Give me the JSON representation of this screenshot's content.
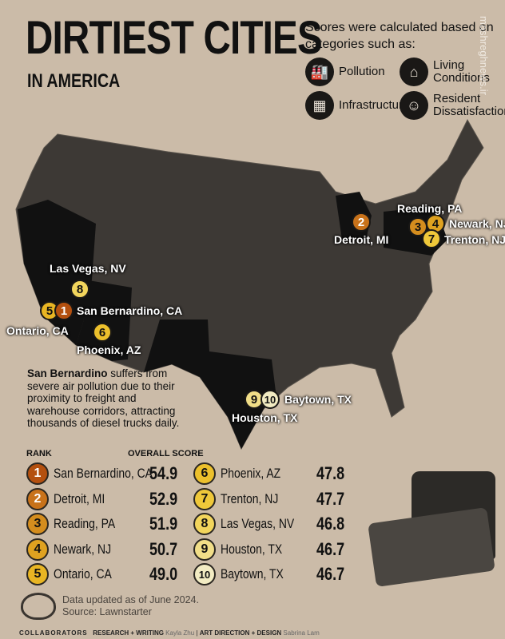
{
  "title": {
    "line1": "DIRTIEST CITIES",
    "line2": "IN AMERICA"
  },
  "note": {
    "text": "Scores were calculated based on categories such as:",
    "categories": [
      {
        "label": "Pollution",
        "icon": "factory-icon"
      },
      {
        "label": "Living Conditions",
        "icon": "house-icon"
      },
      {
        "label": "Infrastructure",
        "icon": "buildings-icon"
      },
      {
        "label": "Resident Dissatisfaction",
        "icon": "person-icon"
      }
    ]
  },
  "watermark": "mashreghnews.ir",
  "map_labels": {
    "las_vegas": "Las Vegas, NV",
    "san_bernardino": "San Bernardino, CA",
    "ontario": "Ontario, CA",
    "phoenix": "Phoenix, AZ",
    "detroit": "Detroit, MI",
    "reading": "Reading, PA",
    "newark": "Newark, NJ",
    "trenton": "Trenton, NJ",
    "houston": "Houston, TX",
    "baytown": "Baytown, TX"
  },
  "callout": {
    "bold": "San Bernardino",
    "text": " suffers from severe air pollution due to their proximity to freight and warehouse corridors, attracting thousands of diesel trucks daily."
  },
  "table": {
    "rank_header": "RANK",
    "score_header": "OVERALL SCORE",
    "rows": [
      {
        "rank": "1",
        "city": "San Bernardino, CA",
        "score": "54.9",
        "color": "#b4500f"
      },
      {
        "rank": "2",
        "city": "Detroit, MI",
        "score": "52.9",
        "color": "#c8721a"
      },
      {
        "rank": "3",
        "city": "Reading, PA",
        "score": "51.9",
        "color": "#d48d1e"
      },
      {
        "rank": "4",
        "city": "Newark, NJ",
        "score": "50.7",
        "color": "#dfa220"
      },
      {
        "rank": "5",
        "city": "Ontario, CA",
        "score": "49.0",
        "color": "#e8b523"
      },
      {
        "rank": "6",
        "city": "Phoenix, AZ",
        "score": "47.8",
        "color": "#ecc02c"
      },
      {
        "rank": "7",
        "city": "Trenton, NJ",
        "score": "47.7",
        "color": "#efc83a"
      },
      {
        "rank": "8",
        "city": "Las Vegas, NV",
        "score": "46.8",
        "color": "#f2d55c"
      },
      {
        "rank": "9",
        "city": "Houston, TX",
        "score": "46.7",
        "color": "#f1de88"
      },
      {
        "rank": "10",
        "city": "Baytown, TX",
        "score": "46.7",
        "color": "#f2ebc2"
      }
    ]
  },
  "footer": {
    "updated": "Data updated as of June 2024.",
    "source": "Source: Lawnstarter",
    "collaborators": "COLLABORATORS",
    "research_label": "RESEARCH + WRITING",
    "research_name": "Kayla Zhu",
    "art_label": "ART DIRECTION + DESIGN",
    "art_name": "Sabrina Lam"
  }
}
